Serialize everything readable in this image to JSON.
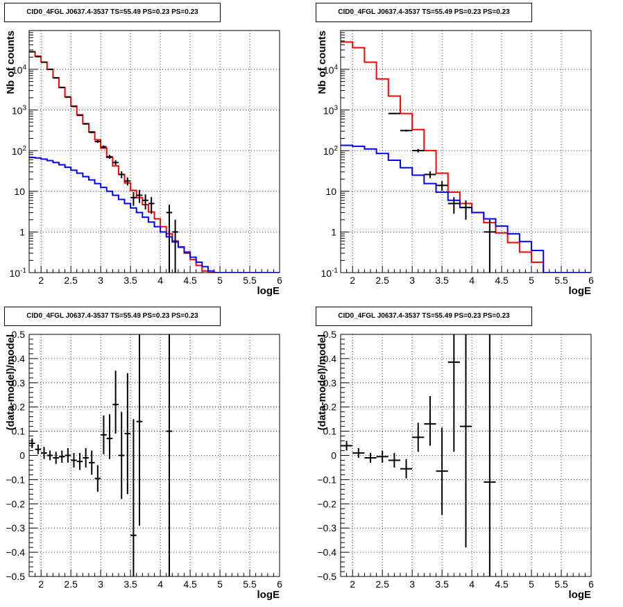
{
  "chart_data": [
    {
      "type": "line",
      "title": "CID0_4FGL J0637.4-3537 TS=55.49 PS=0.23 PS=0.23",
      "xlabel": "logE",
      "ylabel": "Nb of counts",
      "xlim": [
        1.8,
        6.0
      ],
      "ylim": [
        0.1,
        90000
      ],
      "yscale": "log",
      "grid": true,
      "x_ticks": [
        "2",
        "2.5",
        "3",
        "3.5",
        "4",
        "4.5",
        "5",
        "5.5",
        "6"
      ],
      "y_ticks": [
        "10^-1",
        "1",
        "10",
        "10^2",
        "10^3",
        "10^4"
      ],
      "bin_edges": [
        1.8,
        1.9,
        2.0,
        2.1,
        2.2,
        2.3,
        2.4,
        2.5,
        2.6,
        2.7,
        2.8,
        2.9,
        3.0,
        3.1,
        3.2,
        3.3,
        3.4,
        3.5,
        3.6,
        3.7,
        3.8,
        3.9,
        4.0,
        4.1,
        4.2,
        4.3,
        4.4,
        4.5,
        4.6,
        4.7,
        4.8,
        4.9,
        5.0,
        5.1,
        5.2,
        5.3,
        5.4,
        5.5,
        5.6,
        5.7,
        5.8,
        5.9,
        6.0
      ],
      "series": [
        {
          "color": "#ff0000",
          "step": true,
          "values": [
            27000,
            21000,
            15000,
            10000,
            6200,
            3600,
            2100,
            1250,
            760,
            460,
            290,
            185,
            115,
            68,
            42,
            26,
            16,
            10.5,
            7,
            4.7,
            3.1,
            2.1,
            1.35,
            0.9,
            0.6,
            0.42,
            0.3,
            0.21,
            0.15,
            0.11,
            0.1,
            0.1,
            0.1,
            0.1,
            0.1,
            0.1,
            0.1,
            0.1,
            0.1,
            0.1,
            0.1,
            0.1
          ]
        },
        {
          "color": "#0000ff",
          "step": true,
          "values": [
            68,
            66,
            62,
            57,
            51,
            45,
            39,
            33,
            28,
            23,
            19,
            15.5,
            12.5,
            10,
            8,
            6.3,
            5,
            3.9,
            3,
            2.3,
            1.75,
            1.35,
            1.0,
            0.76,
            0.57,
            0.43,
            0.32,
            0.24,
            0.18,
            0.14,
            0.11,
            0.1,
            0.1,
            0.1,
            0.1,
            0.1,
            0.1,
            0.1,
            0.1,
            0.1,
            0.1,
            0.1
          ]
        },
        {
          "color": "#000000",
          "kind": "errorbar",
          "points": [
            {
              "x": 1.85,
              "y": 27000,
              "lo": 26800,
              "hi": 27200
            },
            {
              "x": 1.95,
              "y": 20500,
              "lo": 20300,
              "hi": 20700
            },
            {
              "x": 2.05,
              "y": 15000,
              "lo": 14900,
              "hi": 15100
            },
            {
              "x": 2.15,
              "y": 10000,
              "lo": 9900,
              "hi": 10100
            },
            {
              "x": 2.25,
              "y": 6150,
              "lo": 6070,
              "hi": 6230
            },
            {
              "x": 2.35,
              "y": 3560,
              "lo": 3500,
              "hi": 3620
            },
            {
              "x": 2.45,
              "y": 2080,
              "lo": 2035,
              "hi": 2125
            },
            {
              "x": 2.55,
              "y": 1220,
              "lo": 1185,
              "hi": 1255
            },
            {
              "x": 2.65,
              "y": 740,
              "lo": 713,
              "hi": 767
            },
            {
              "x": 2.75,
              "y": 455,
              "lo": 434,
              "hi": 476
            },
            {
              "x": 2.85,
              "y": 283,
              "lo": 266,
              "hi": 300
            },
            {
              "x": 2.95,
              "y": 168,
              "lo": 155,
              "hi": 181
            },
            {
              "x": 3.05,
              "y": 124,
              "lo": 113,
              "hi": 135
            },
            {
              "x": 3.15,
              "y": 71,
              "lo": 63,
              "hi": 79
            },
            {
              "x": 3.25,
              "y": 51,
              "lo": 44,
              "hi": 58
            },
            {
              "x": 3.35,
              "y": 26,
              "lo": 21,
              "hi": 31
            },
            {
              "x": 3.45,
              "y": 18,
              "lo": 14,
              "hi": 22
            },
            {
              "x": 3.55,
              "y": 7,
              "lo": 4.4,
              "hi": 9.6
            },
            {
              "x": 3.65,
              "y": 8,
              "lo": 5.2,
              "hi": 10.8
            },
            {
              "x": 3.75,
              "y": 6,
              "lo": 3.6,
              "hi": 8.4
            },
            {
              "x": 3.85,
              "y": 5,
              "lo": 2.8,
              "hi": 7.2
            },
            {
              "x": 4.15,
              "y": 3,
              "lo": 0.1,
              "hi": 4.7
            },
            {
              "x": 4.25,
              "y": 1,
              "lo": 0.1,
              "hi": 2
            }
          ]
        }
      ]
    },
    {
      "type": "line",
      "title": "CID0_4FGL J0637.4-3537 TS=55.49 PS=0.23 PS=0.23",
      "xlabel": "logE",
      "ylabel": "Nb of counts",
      "xlim": [
        1.8,
        6.0
      ],
      "ylim": [
        0.1,
        90000
      ],
      "yscale": "log",
      "grid": true,
      "x_ticks": [
        "2",
        "2.5",
        "3",
        "3.5",
        "4",
        "4.5",
        "5",
        "5.5",
        "6"
      ],
      "y_ticks": [
        "10^-1",
        "1",
        "10",
        "10^2",
        "10^3",
        "10^4"
      ],
      "bin_edges": [
        1.8,
        2.0,
        2.2,
        2.4,
        2.6,
        2.8,
        3.0,
        3.2,
        3.4,
        3.6,
        3.8,
        4.0,
        4.2,
        4.4,
        4.6,
        4.8,
        5.0,
        5.2,
        5.4,
        5.6,
        5.8,
        6.0
      ],
      "series": [
        {
          "color": "#ff0000",
          "step": true,
          "values": [
            47000,
            34000,
            15000,
            5800,
            2200,
            820,
            330,
            100,
            28,
            9.5,
            5,
            3,
            1.7,
            0.95,
            0.55,
            0.32,
            0.18,
            0.1,
            0.1,
            0.1,
            0.1
          ]
        },
        {
          "color": "#0000ff",
          "step": true,
          "values": [
            135,
            128,
            110,
            85,
            58,
            38,
            25,
            15.5,
            9.5,
            6,
            4,
            3,
            2.1,
            1.4,
            0.9,
            0.58,
            0.35,
            0.1,
            0.1,
            0.1,
            0.1
          ]
        },
        {
          "color": "#000000",
          "kind": "errorbar",
          "points": [
            {
              "x": 2.7,
              "y": 820,
              "lo": 790,
              "hi": 850
            },
            {
              "x": 2.9,
              "y": 312,
              "lo": 294,
              "hi": 330
            },
            {
              "x": 3.1,
              "y": 100,
              "lo": 90,
              "hi": 110
            },
            {
              "x": 3.3,
              "y": 26,
              "lo": 21,
              "hi": 31
            },
            {
              "x": 3.5,
              "y": 14,
              "lo": 10.3,
              "hi": 17.7
            },
            {
              "x": 3.7,
              "y": 5,
              "lo": 2.8,
              "hi": 7.2
            },
            {
              "x": 3.9,
              "y": 4,
              "lo": 2,
              "hi": 6
            },
            {
              "x": 4.3,
              "y": 1,
              "lo": 0.1,
              "hi": 2
            }
          ]
        }
      ]
    },
    {
      "type": "scatter",
      "title": "CID0_4FGL J0637.4-3537 TS=55.49 PS=0.23 PS=0.23",
      "xlabel": "logE",
      "ylabel": "(data-model)/model",
      "xlim": [
        1.8,
        6.0
      ],
      "ylim": [
        -0.5,
        0.5
      ],
      "grid": true,
      "x_ticks": [
        "2",
        "2.5",
        "3",
        "3.5",
        "4",
        "4.5",
        "5",
        "5.5",
        "6"
      ],
      "y_ticks": [
        "−0.5",
        "−0.4",
        "−0.3",
        "−0.2",
        "−0.1",
        "0",
        "0.1",
        "0.2",
        "0.3",
        "0.4",
        "0.5"
      ],
      "series": [
        {
          "color": "#000000",
          "kind": "errorbar",
          "xerr": 0.05,
          "points": [
            {
              "x": 1.85,
              "y": 0.05,
              "lo": 0.03,
              "hi": 0.07
            },
            {
              "x": 1.95,
              "y": 0.025,
              "lo": 0.005,
              "hi": 0.045
            },
            {
              "x": 2.05,
              "y": 0.01,
              "lo": -0.015,
              "hi": 0.035
            },
            {
              "x": 2.15,
              "y": 0.0,
              "lo": -0.02,
              "hi": 0.02
            },
            {
              "x": 2.25,
              "y": -0.01,
              "lo": -0.035,
              "hi": 0.015
            },
            {
              "x": 2.35,
              "y": -0.005,
              "lo": -0.03,
              "hi": 0.02
            },
            {
              "x": 2.45,
              "y": 0.0,
              "lo": -0.03,
              "hi": 0.03
            },
            {
              "x": 2.55,
              "y": -0.02,
              "lo": -0.05,
              "hi": 0.01
            },
            {
              "x": 2.65,
              "y": -0.025,
              "lo": -0.06,
              "hi": 0.01
            },
            {
              "x": 2.75,
              "y": -0.01,
              "lo": -0.05,
              "hi": 0.03
            },
            {
              "x": 2.85,
              "y": -0.03,
              "lo": -0.08,
              "hi": 0.02
            },
            {
              "x": 2.95,
              "y": -0.095,
              "lo": -0.15,
              "hi": -0.04
            },
            {
              "x": 3.05,
              "y": 0.085,
              "lo": 0.005,
              "hi": 0.165
            },
            {
              "x": 3.15,
              "y": 0.07,
              "lo": -0.015,
              "hi": 0.17
            },
            {
              "x": 3.25,
              "y": 0.21,
              "lo": 0.09,
              "hi": 0.35
            },
            {
              "x": 3.35,
              "y": 0.0,
              "lo": -0.18,
              "hi": 0.18
            },
            {
              "x": 3.45,
              "y": 0.09,
              "lo": -0.16,
              "hi": 0.34
            },
            {
              "x": 3.55,
              "y": -0.33,
              "lo": -0.55,
              "hi": 0.15
            },
            {
              "x": 3.65,
              "y": 0.14,
              "lo": -0.29,
              "hi": 0.55
            },
            {
              "x": 4.15,
              "y": 0.1,
              "lo": -0.55,
              "hi": 0.55
            }
          ]
        }
      ]
    },
    {
      "type": "scatter",
      "title": "CID0_4FGL J0637.4-3537 TS=55.49 PS=0.23 PS=0.23",
      "xlabel": "logE",
      "ylabel": "(data-model)/model",
      "xlim": [
        1.8,
        6.0
      ],
      "ylim": [
        -0.5,
        0.5
      ],
      "grid": true,
      "x_ticks": [
        "2",
        "2.5",
        "3",
        "3.5",
        "4",
        "4.5",
        "5",
        "5.5",
        "6"
      ],
      "y_ticks": [
        "−0.5",
        "−0.4",
        "−0.3",
        "−0.2",
        "−0.1",
        "0",
        "0.1",
        "0.2",
        "0.3",
        "0.4",
        "0.5"
      ],
      "series": [
        {
          "color": "#000000",
          "kind": "errorbar",
          "xerr": 0.1,
          "points": [
            {
              "x": 1.9,
              "y": 0.04,
              "lo": 0.02,
              "hi": 0.06
            },
            {
              "x": 2.1,
              "y": 0.01,
              "lo": -0.01,
              "hi": 0.03
            },
            {
              "x": 2.3,
              "y": -0.01,
              "lo": -0.03,
              "hi": 0.01
            },
            {
              "x": 2.5,
              "y": -0.005,
              "lo": -0.03,
              "hi": 0.02
            },
            {
              "x": 2.7,
              "y": -0.02,
              "lo": -0.05,
              "hi": 0.01
            },
            {
              "x": 2.9,
              "y": -0.055,
              "lo": -0.095,
              "hi": -0.015
            },
            {
              "x": 3.1,
              "y": 0.075,
              "lo": 0.015,
              "hi": 0.135
            },
            {
              "x": 3.3,
              "y": 0.13,
              "lo": 0.04,
              "hi": 0.245
            },
            {
              "x": 3.5,
              "y": -0.065,
              "lo": -0.245,
              "hi": 0.115
            },
            {
              "x": 3.7,
              "y": 0.385,
              "lo": 0.015,
              "hi": 0.55
            },
            {
              "x": 3.9,
              "y": 0.12,
              "lo": -0.38,
              "hi": 0.55
            },
            {
              "x": 4.3,
              "y": -0.11,
              "lo": -0.55,
              "hi": 0.55
            }
          ]
        }
      ]
    }
  ]
}
